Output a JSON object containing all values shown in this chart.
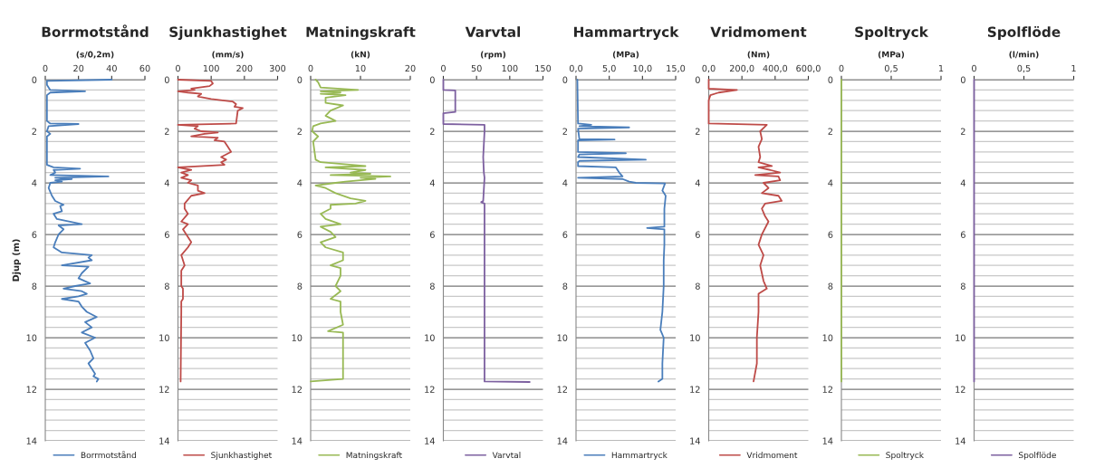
{
  "chart_data": [
    {
      "type": "line",
      "orientation": "horizontal",
      "title": "Borrmotstånd",
      "xlabel": "(s/0,2m)",
      "ylabel": "Djup (m)",
      "xlim": [
        0,
        60
      ],
      "xticks": [
        0,
        20,
        40,
        60
      ],
      "ylim": [
        14,
        0
      ],
      "yticks": [
        0,
        2,
        4,
        6,
        8,
        10,
        12,
        14
      ],
      "grid": "y",
      "legend": "bottom",
      "series": [
        {
          "name": "Borrmotstånd",
          "color": "#4a7ebb",
          "x": [
            0,
            0.05,
            0.2,
            0.4,
            0.45,
            0.5,
            0.6,
            1.0,
            1.6,
            1.7,
            1.72,
            1.8,
            2.0,
            2.1,
            2.2,
            3.3,
            3.4,
            3.45,
            3.5,
            3.6,
            3.7,
            3.75,
            3.8,
            3.85,
            3.9,
            3.95,
            4.0,
            4.2,
            4.5,
            4.7,
            4.85,
            4.9,
            5.1,
            5.2,
            5.4,
            5.6,
            5.65,
            5.8,
            6.0,
            6.3,
            6.5,
            6.7,
            6.8,
            6.9,
            7.0,
            7.2,
            7.25,
            7.5,
            7.7,
            7.9,
            8.0,
            8.1,
            8.2,
            8.3,
            8.4,
            8.5,
            8.6,
            8.8,
            9.0,
            9.2,
            9.4,
            9.6,
            9.8,
            10.0,
            10.2,
            10.5,
            10.8,
            11.0,
            11.2,
            11.4,
            11.5,
            11.6,
            11.7
          ],
          "values": [
            40,
            1,
            1,
            3,
            24,
            3,
            1,
            1,
            1,
            3,
            20,
            2,
            1,
            3,
            1,
            1,
            5,
            21,
            5,
            6,
            3,
            38,
            6,
            16,
            6,
            10,
            3,
            2,
            4,
            6,
            11,
            9,
            10,
            5,
            7,
            22,
            8,
            11,
            8,
            6,
            5,
            10,
            28,
            26,
            28,
            10,
            26,
            22,
            20,
            27,
            18,
            11,
            22,
            25,
            20,
            10,
            20,
            22,
            25,
            31,
            24,
            28,
            22,
            30,
            24,
            27,
            29,
            26,
            28,
            30,
            29,
            32,
            31
          ]
        }
      ]
    },
    {
      "type": "line",
      "orientation": "horizontal",
      "title": "Sjunkhastighet",
      "xlabel": "(mm/s)",
      "xlim": [
        0,
        300
      ],
      "xticks": [
        0,
        100,
        200,
        300
      ],
      "ylim": [
        14,
        0
      ],
      "yticks": [
        0,
        2,
        4,
        6,
        8,
        10,
        12,
        14
      ],
      "grid": "y",
      "legend": "bottom",
      "series": [
        {
          "name": "Sjunkhastighet",
          "color": "#be4b48",
          "x": [
            0,
            0.05,
            0.15,
            0.25,
            0.35,
            0.4,
            0.45,
            0.5,
            0.55,
            0.65,
            0.75,
            0.85,
            0.95,
            1.05,
            1.1,
            1.2,
            1.7,
            1.75,
            1.8,
            1.9,
            2.0,
            2.05,
            2.1,
            2.2,
            2.25,
            2.35,
            2.4,
            2.6,
            2.8,
            3.0,
            3.1,
            3.2,
            3.3,
            3.4,
            3.5,
            3.6,
            3.7,
            3.8,
            3.9,
            4.0,
            4.1,
            4.3,
            4.4,
            4.5,
            4.8,
            5.0,
            5.2,
            5.5,
            5.6,
            5.8,
            6.0,
            6.3,
            6.5,
            6.8,
            7.2,
            7.4,
            8.0,
            8.1,
            8.5,
            8.6,
            9.0,
            11.7
          ],
          "values": [
            0,
            100,
            105,
            95,
            40,
            50,
            0,
            30,
            70,
            60,
            100,
            165,
            175,
            170,
            195,
            180,
            175,
            0,
            60,
            50,
            70,
            120,
            80,
            40,
            120,
            110,
            140,
            150,
            160,
            130,
            145,
            130,
            140,
            0,
            40,
            10,
            30,
            10,
            40,
            30,
            60,
            60,
            80,
            40,
            20,
            20,
            30,
            10,
            30,
            15,
            25,
            40,
            30,
            10,
            20,
            10,
            10,
            15,
            15,
            10,
            10,
            8
          ]
        }
      ]
    },
    {
      "type": "line",
      "orientation": "horizontal",
      "title": "Matningskraft",
      "xlabel": "(kN)",
      "xlim": [
        0,
        20
      ],
      "xticks": [
        0,
        10,
        20
      ],
      "ylim": [
        14,
        0
      ],
      "yticks": [
        0,
        2,
        4,
        6,
        8,
        10,
        12,
        14
      ],
      "grid": "y",
      "legend": "bottom",
      "series": [
        {
          "name": "Matningskraft",
          "color": "#98b954",
          "x": [
            0,
            0.1,
            0.3,
            0.4,
            0.45,
            0.5,
            0.55,
            0.6,
            0.7,
            0.9,
            1.0,
            1.2,
            1.4,
            1.6,
            1.7,
            1.8,
            2.0,
            2.2,
            2.4,
            3.1,
            3.2,
            3.35,
            3.4,
            3.5,
            3.6,
            3.65,
            3.7,
            3.75,
            3.8,
            3.85,
            3.95,
            4.0,
            4.1,
            4.2,
            4.4,
            4.6,
            4.7,
            4.8,
            4.85,
            5.0,
            5.2,
            5.4,
            5.6,
            5.7,
            5.9,
            6.1,
            6.3,
            6.5,
            6.7,
            7.0,
            7.2,
            7.3,
            7.6,
            8.0,
            8.2,
            8.5,
            8.6,
            9.0,
            9.5,
            9.75,
            9.8,
            10.5,
            11.6,
            11.7
          ],
          "values": [
            1,
            1.5,
            2,
            9.5,
            2,
            6,
            2,
            7,
            3,
            3,
            6.5,
            4,
            3,
            5,
            2,
            0.5,
            0.3,
            1.5,
            0.5,
            1,
            2,
            11,
            3,
            11,
            8,
            12,
            4,
            16,
            10,
            13,
            7,
            5,
            1,
            3,
            5,
            8,
            11,
            9,
            4,
            4,
            2,
            3,
            6,
            2,
            4,
            5,
            2,
            3,
            6.5,
            6.5,
            4,
            6,
            6,
            5,
            6,
            4,
            6,
            6,
            6.5,
            3.5,
            6.5,
            6.5,
            6.5,
            0
          ]
        }
      ]
    },
    {
      "type": "line",
      "orientation": "horizontal",
      "title": "Varvtal",
      "xlabel": "(rpm)",
      "xlim": [
        0,
        150
      ],
      "xticks": [
        0,
        50,
        100,
        150
      ],
      "ylim": [
        14,
        0
      ],
      "yticks": [
        0,
        2,
        4,
        6,
        8,
        10,
        12,
        14
      ],
      "grid": "y",
      "legend": "bottom",
      "series": [
        {
          "name": "Varvtal",
          "color": "#7d60a0",
          "x": [
            0,
            0.4,
            0.42,
            1.25,
            1.3,
            1.72,
            1.75,
            2.0,
            3.0,
            3.6,
            3.8,
            4.7,
            4.75,
            4.8,
            11.7,
            11.72
          ],
          "values": [
            0,
            0,
            18,
            18,
            0,
            0,
            62,
            62,
            60,
            61,
            62,
            60,
            57,
            62,
            62,
            130
          ]
        }
      ]
    },
    {
      "type": "line",
      "orientation": "horizontal",
      "title": "Hammartryck",
      "xlabel": "(MPa)",
      "xlim": [
        0,
        15
      ],
      "xticks": [
        {
          "value": 0,
          "label": "0,0"
        },
        {
          "value": 5,
          "label": "5,0"
        },
        {
          "value": 10,
          "label": "10,0"
        },
        {
          "value": 15,
          "label": "15,0"
        }
      ],
      "ylim": [
        14,
        0
      ],
      "yticks": [
        0,
        2,
        4,
        6,
        8,
        10,
        12,
        14
      ],
      "grid": "y",
      "legend": "bottom",
      "series": [
        {
          "name": "Hammartryck",
          "color": "#4a7ebb",
          "x": [
            0,
            1.7,
            1.75,
            1.8,
            1.85,
            1.9,
            2.3,
            2.32,
            2.35,
            2.8,
            2.85,
            2.9,
            3.0,
            3.1,
            3.15,
            3.2,
            3.35,
            3.4,
            3.6,
            3.75,
            3.8,
            3.85,
            3.95,
            4.0,
            4.02,
            4.3,
            4.5,
            5.0,
            5.7,
            5.75,
            5.8,
            6.4,
            7.0,
            8.0,
            9.0,
            9.7,
            10.0,
            11.0,
            11.6,
            11.7
          ],
          "values": [
            0.2,
            0.3,
            2.3,
            0.5,
            8,
            0.3,
            0.5,
            5.8,
            0.3,
            0.3,
            7.5,
            0.5,
            0.3,
            10.5,
            0.5,
            0.3,
            0.3,
            6,
            6.5,
            7,
            0.3,
            7,
            8,
            9,
            13.4,
            13,
            13.5,
            13.3,
            13.3,
            10.7,
            13.3,
            13.3,
            13.2,
            13.2,
            13,
            12.7,
            13.2,
            13,
            13,
            12.4
          ]
        }
      ]
    },
    {
      "type": "line",
      "orientation": "horizontal",
      "title": "Vridmoment",
      "xlabel": "(Nm)",
      "xlim": [
        0,
        600
      ],
      "xticks": [
        {
          "value": 0,
          "label": "0,0"
        },
        {
          "value": 200,
          "label": "200,0"
        },
        {
          "value": 400,
          "label": "400,0"
        },
        {
          "value": 600,
          "label": "600,0"
        }
      ],
      "ylim": [
        14,
        0
      ],
      "yticks": [
        0,
        2,
        4,
        6,
        8,
        10,
        12,
        14
      ],
      "grid": "y",
      "legend": "bottom",
      "series": [
        {
          "name": "Vridmoment",
          "color": "#be4b48",
          "x": [
            0,
            0.35,
            0.4,
            0.5,
            0.6,
            0.8,
            1.7,
            1.75,
            2.0,
            2.3,
            2.6,
            3.0,
            3.2,
            3.35,
            3.4,
            3.5,
            3.6,
            3.7,
            3.75,
            3.9,
            4.0,
            4.2,
            4.4,
            4.5,
            4.7,
            4.8,
            5.0,
            5.3,
            5.5,
            6.0,
            6.4,
            6.8,
            7.2,
            7.8,
            8.1,
            8.3,
            9.0,
            10.0,
            11.0,
            11.7
          ],
          "values": [
            0,
            0,
            170,
            60,
            10,
            0,
            0,
            350,
            310,
            320,
            300,
            310,
            300,
            380,
            300,
            370,
            430,
            280,
            420,
            430,
            330,
            360,
            320,
            420,
            440,
            340,
            320,
            340,
            360,
            320,
            300,
            330,
            310,
            330,
            350,
            300,
            300,
            290,
            290,
            270
          ]
        }
      ]
    },
    {
      "type": "line",
      "orientation": "horizontal",
      "title": "Spoltryck",
      "xlabel": "(MPa)",
      "xlim": [
        0,
        1
      ],
      "xticks": [
        0,
        {
          "value": 0.5,
          "label": "0,5"
        },
        1
      ],
      "ylim": [
        14,
        0
      ],
      "yticks": [
        0,
        2,
        4,
        6,
        8,
        10,
        12,
        14
      ],
      "grid": "y",
      "legend": "bottom",
      "series": [
        {
          "name": "Spoltryck",
          "color": "#98b954",
          "x": [
            0,
            11.7
          ],
          "values": [
            0,
            0
          ]
        }
      ]
    },
    {
      "type": "line",
      "orientation": "horizontal",
      "title": "Spolflöde",
      "xlabel": "(l/min)",
      "xlim": [
        0,
        1
      ],
      "xticks": [
        0,
        {
          "value": 0.5,
          "label": "0,5"
        },
        1
      ],
      "ylim": [
        14,
        0
      ],
      "yticks": [
        0,
        2,
        4,
        6,
        8,
        10,
        12,
        14
      ],
      "grid": "y",
      "legend": "bottom",
      "series": [
        {
          "name": "Spolflöde",
          "color": "#7d60a0",
          "x": [
            0,
            11.7
          ],
          "values": [
            0,
            0
          ]
        }
      ]
    }
  ]
}
